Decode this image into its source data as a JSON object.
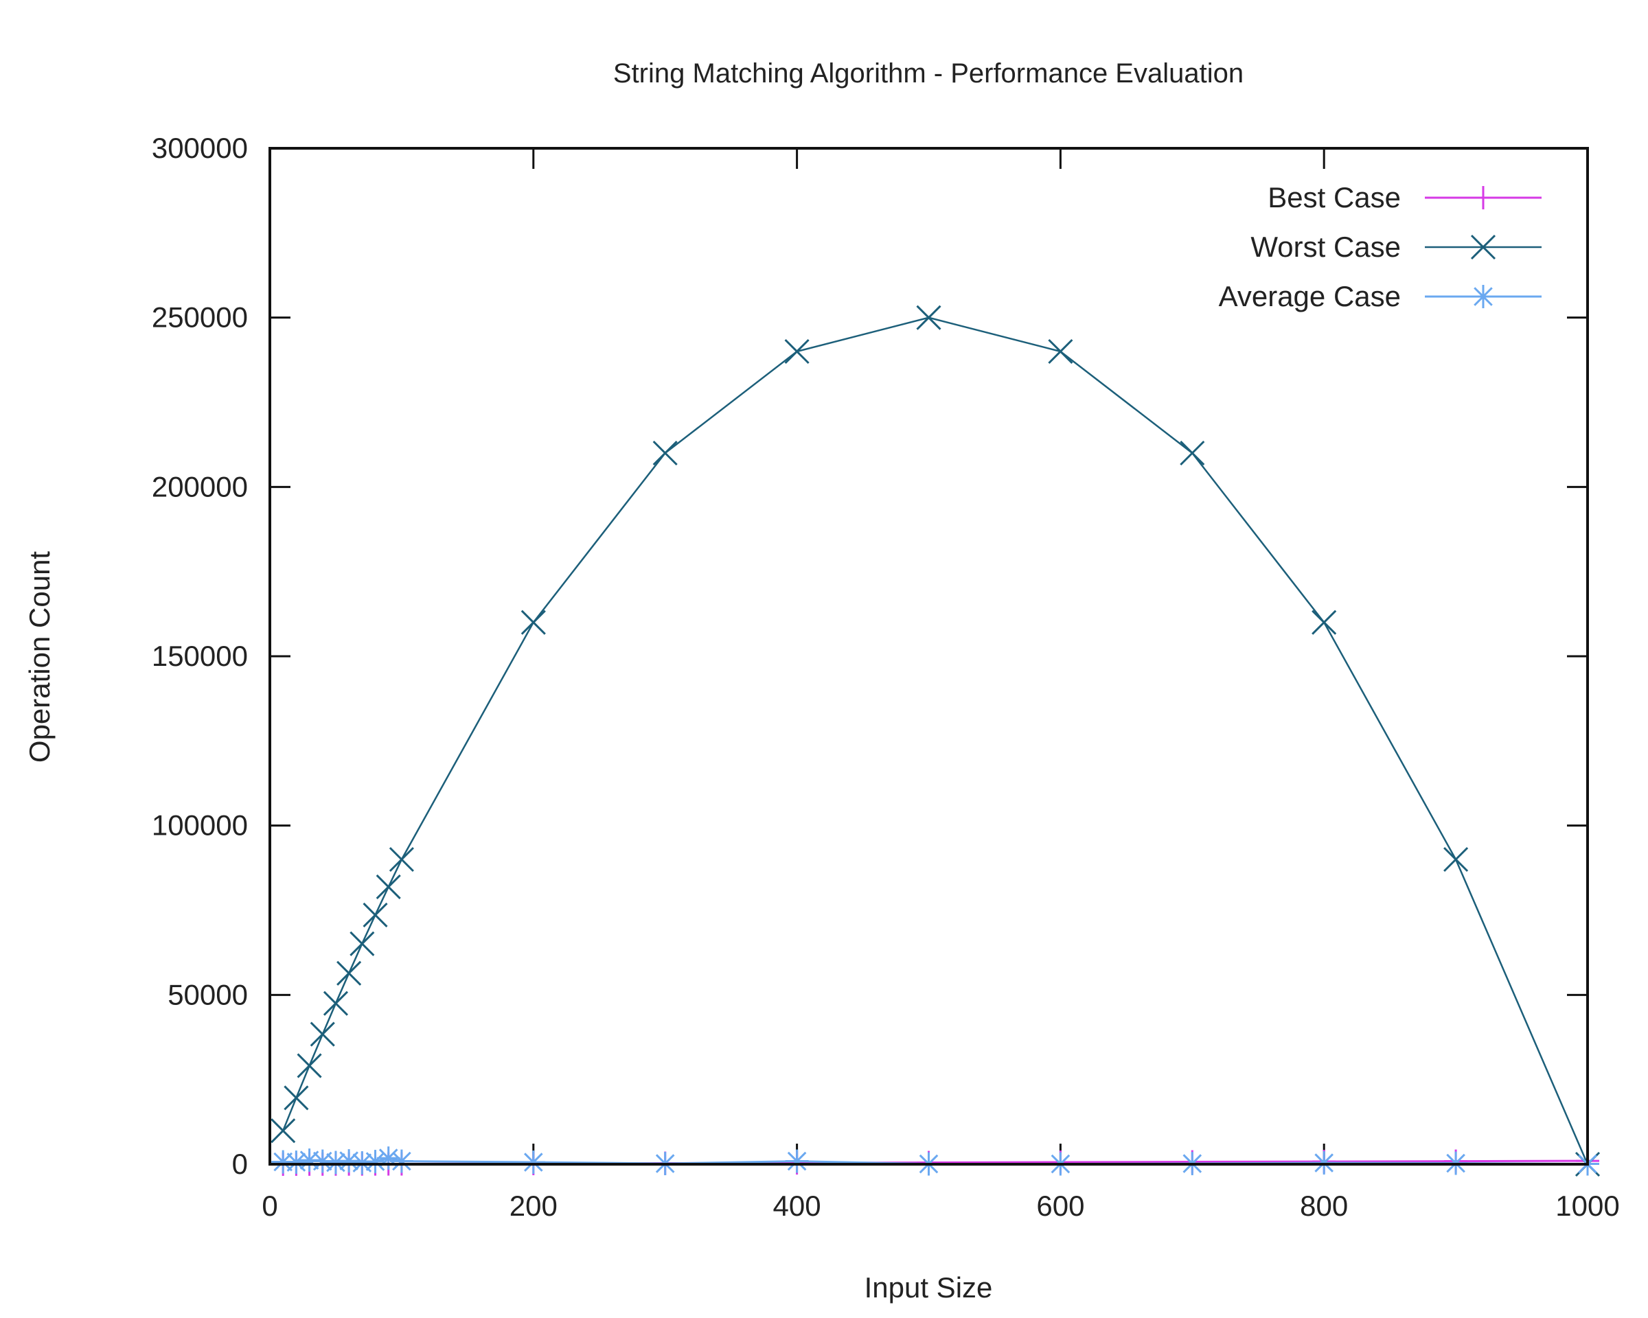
{
  "chart_data": {
    "type": "line",
    "title": "String Matching Algorithm - Performance Evaluation",
    "xlabel": "Input Size",
    "ylabel": "Operation Count",
    "xlim": [
      0,
      1000
    ],
    "ylim": [
      0,
      300000
    ],
    "x_ticks": [
      "0",
      "200",
      "400",
      "600",
      "800",
      "1000"
    ],
    "y_ticks": [
      "0",
      "50000",
      "100000",
      "150000",
      "200000",
      "250000",
      "300000"
    ],
    "x_tick_values": [
      0,
      200,
      400,
      600,
      800,
      1000
    ],
    "y_tick_values": [
      0,
      50000,
      100000,
      150000,
      200000,
      250000,
      300000
    ],
    "grid": false,
    "legend_position": "top-right",
    "series": [
      {
        "name": "Best Case",
        "color": "#d63ae6",
        "marker": "plus",
        "x": [
          10,
          20,
          30,
          40,
          50,
          60,
          70,
          80,
          90,
          100,
          200,
          300,
          400,
          500,
          600,
          700,
          800,
          900,
          1000
        ],
        "y": [
          10,
          20,
          30,
          40,
          50,
          60,
          70,
          80,
          90,
          100,
          200,
          300,
          400,
          500,
          600,
          700,
          800,
          900,
          1000
        ]
      },
      {
        "name": "Worst Case",
        "color": "#1c5f7a",
        "marker": "cross",
        "x": [
          10,
          20,
          30,
          40,
          50,
          60,
          70,
          80,
          90,
          100,
          200,
          300,
          400,
          500,
          600,
          700,
          800,
          900,
          1000
        ],
        "y": [
          9900,
          19600,
          29100,
          38400,
          47500,
          56400,
          65100,
          73600,
          81900,
          90000,
          160000,
          210000,
          240000,
          250000,
          240000,
          210000,
          160000,
          90000,
          0
        ]
      },
      {
        "name": "Average Case",
        "color": "#6aa8f0",
        "marker": "star",
        "x": [
          10,
          20,
          30,
          40,
          50,
          60,
          70,
          80,
          90,
          100,
          200,
          300,
          400,
          500,
          600,
          700,
          800,
          900,
          1000
        ],
        "y": [
          700,
          600,
          1200,
          900,
          500,
          1000,
          400,
          800,
          1800,
          900,
          600,
          200,
          900,
          100,
          100,
          200,
          400,
          300,
          100
        ]
      }
    ]
  }
}
